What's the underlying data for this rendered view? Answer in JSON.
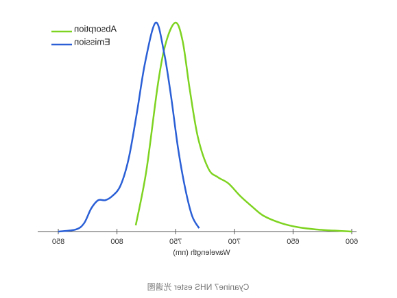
{
  "chart_data": {
    "type": "line",
    "caption": "Cyanine7 NHS ester 光谱图",
    "x_label": "Wavelength (nm)",
    "xlim": [
      600,
      850
    ],
    "xticks": [
      600,
      650,
      700,
      750,
      800,
      850
    ],
    "ylim": [
      0,
      1
    ],
    "series": [
      {
        "name": "Absorption",
        "color": "#7ed321",
        "x": [
          784,
          775,
          765,
          758,
          750,
          744,
          738,
          731,
          722,
          714,
          705,
          695,
          685,
          675,
          660,
          645,
          630,
          610,
          600
        ],
        "values": [
          0.03,
          0.29,
          0.71,
          0.91,
          1.0,
          0.91,
          0.68,
          0.45,
          0.3,
          0.26,
          0.23,
          0.17,
          0.12,
          0.075,
          0.04,
          0.02,
          0.01,
          0.003,
          0
        ]
      },
      {
        "name": "Emission",
        "color": "#2a5fd6",
        "x": [
          850,
          835,
          828,
          822,
          816,
          810,
          804,
          797,
          790,
          783,
          776,
          767,
          760,
          754,
          748,
          742,
          736,
          730
        ],
        "values": [
          0,
          0.01,
          0.04,
          0.11,
          0.15,
          0.15,
          0.17,
          0.22,
          0.35,
          0.57,
          0.81,
          1.0,
          0.86,
          0.65,
          0.4,
          0.21,
          0.075,
          0.016
        ]
      }
    ]
  }
}
